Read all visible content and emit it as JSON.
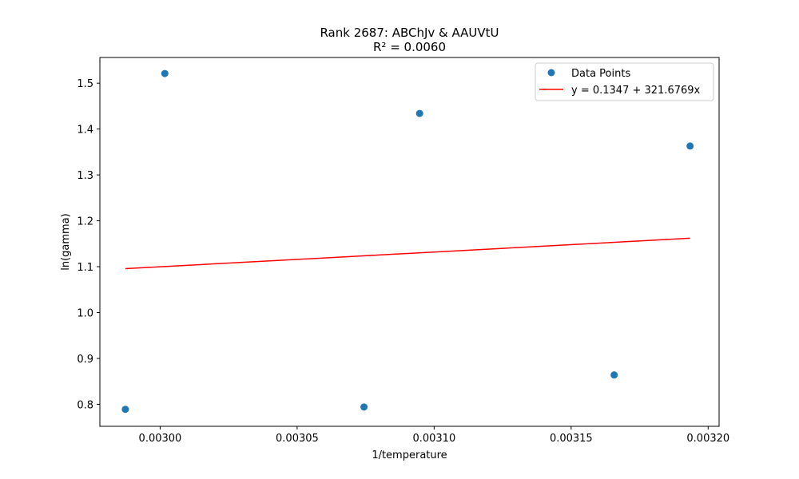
{
  "chart_data": {
    "type": "scatter",
    "title": "Rank 2687: ABChJv & AAUVtU",
    "subtitle": "R² = 0.0060",
    "xlabel": "1/temperature",
    "ylabel": "ln(gamma)",
    "xlim": [
      0.002978,
      0.003204
    ],
    "ylim": [
      0.752,
      1.556
    ],
    "x_ticks": [
      0.003,
      0.00305,
      0.0031,
      0.00315,
      0.0032
    ],
    "x_tick_labels": [
      "0.00300",
      "0.00305",
      "0.00310",
      "0.00315",
      "0.00320"
    ],
    "y_ticks": [
      0.8,
      0.9,
      1.0,
      1.1,
      1.2,
      1.3,
      1.4,
      1.5
    ],
    "y_tick_labels": [
      "0.8",
      "0.9",
      "1.0",
      "1.1",
      "1.2",
      "1.3",
      "1.4",
      "1.5"
    ],
    "grid": false,
    "legend_position": "top-right",
    "series": [
      {
        "name": "Data Points",
        "kind": "scatter",
        "color": "#1f77b4",
        "x": [
          0.0029873,
          0.0030017,
          0.0030744,
          0.0030947,
          0.0031657,
          0.0031934
        ],
        "y": [
          0.789,
          1.521,
          0.794,
          1.434,
          0.864,
          1.363
        ]
      },
      {
        "name": "y = 0.1347 + 321.6769x",
        "kind": "line",
        "color": "#ff0000",
        "intercept": 0.1347,
        "slope": 321.6769,
        "x_range": [
          0.0029873,
          0.0031934
        ]
      }
    ]
  }
}
